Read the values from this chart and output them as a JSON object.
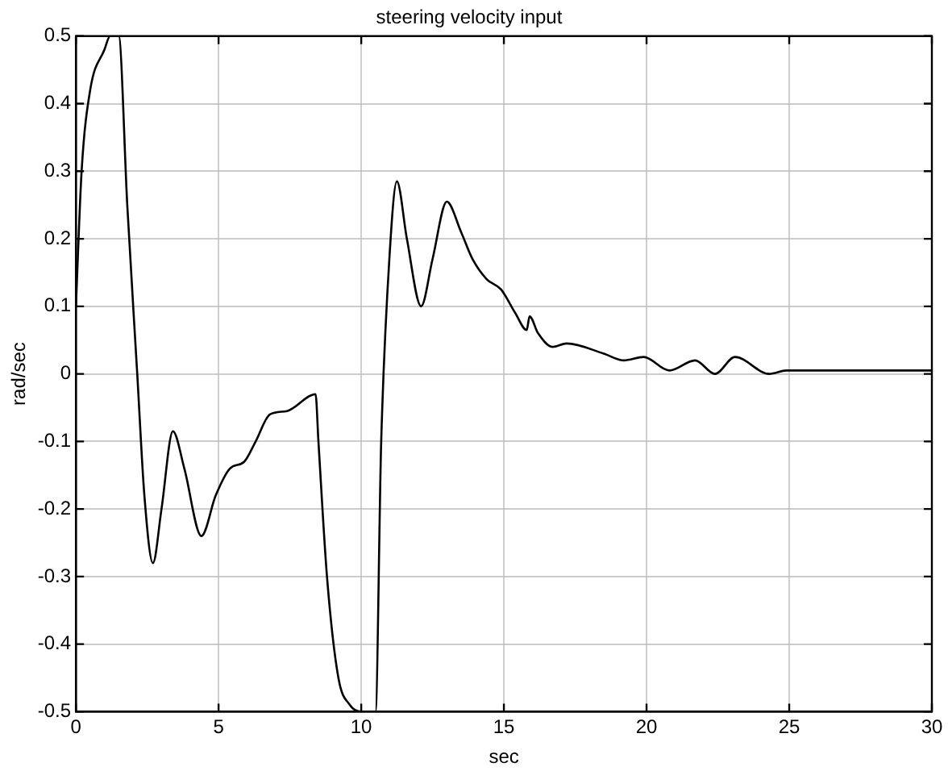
{
  "chart_data": {
    "type": "line",
    "title": "steering velocity input",
    "xlabel": "sec",
    "ylabel": "rad/sec",
    "x": [
      0,
      0.2,
      0.5,
      1,
      1.2,
      1.5,
      1.8,
      2.15,
      2.4,
      2.7,
      3,
      3.4,
      3.8,
      4.4,
      4.9,
      5.4,
      5.9,
      6.3,
      6.8,
      7.4,
      8.4,
      8.5,
      8.8,
      9.2,
      9.6,
      10,
      10.5,
      10.7,
      11,
      11.25,
      11.6,
      12.1,
      12.5,
      13,
      13.5,
      13.9,
      14.4,
      14.9,
      15.4,
      15.8,
      15.9,
      16.2,
      16.7,
      17.2,
      18.5,
      19.2,
      19.9,
      20.8,
      21.7,
      22.4,
      23.1,
      24.3,
      24.9,
      30
    ],
    "values": [
      0.1,
      0.3,
      0.42,
      0.48,
      0.5,
      0.5,
      0.25,
      0,
      -0.18,
      -0.28,
      -0.2,
      -0.085,
      -0.14,
      -0.24,
      -0.18,
      -0.14,
      -0.13,
      -0.1,
      -0.06,
      -0.055,
      -0.03,
      -0.1,
      -0.3,
      -0.45,
      -0.49,
      -0.5,
      -0.5,
      -0.1,
      0.18,
      0.285,
      0.2,
      0.1,
      0.17,
      0.255,
      0.21,
      0.17,
      0.14,
      0.125,
      0.09,
      0.065,
      0.085,
      0.06,
      0.04,
      0.045,
      0.03,
      0.02,
      0.025,
      0.005,
      0.02,
      0,
      0.025,
      0,
      0.005,
      0.005
    ],
    "color": "#000000",
    "xlim": [
      0,
      30
    ],
    "ylim": [
      -0.5,
      0.5
    ],
    "xticks": [
      0,
      5,
      10,
      15,
      20,
      25,
      30
    ],
    "yticks": [
      -0.5,
      -0.4,
      -0.3,
      -0.2,
      -0.1,
      0,
      0.1,
      0.2,
      0.3,
      0.4,
      0.5
    ],
    "grid": true,
    "legend": false,
    "marker": "none",
    "line_style": "solid"
  }
}
